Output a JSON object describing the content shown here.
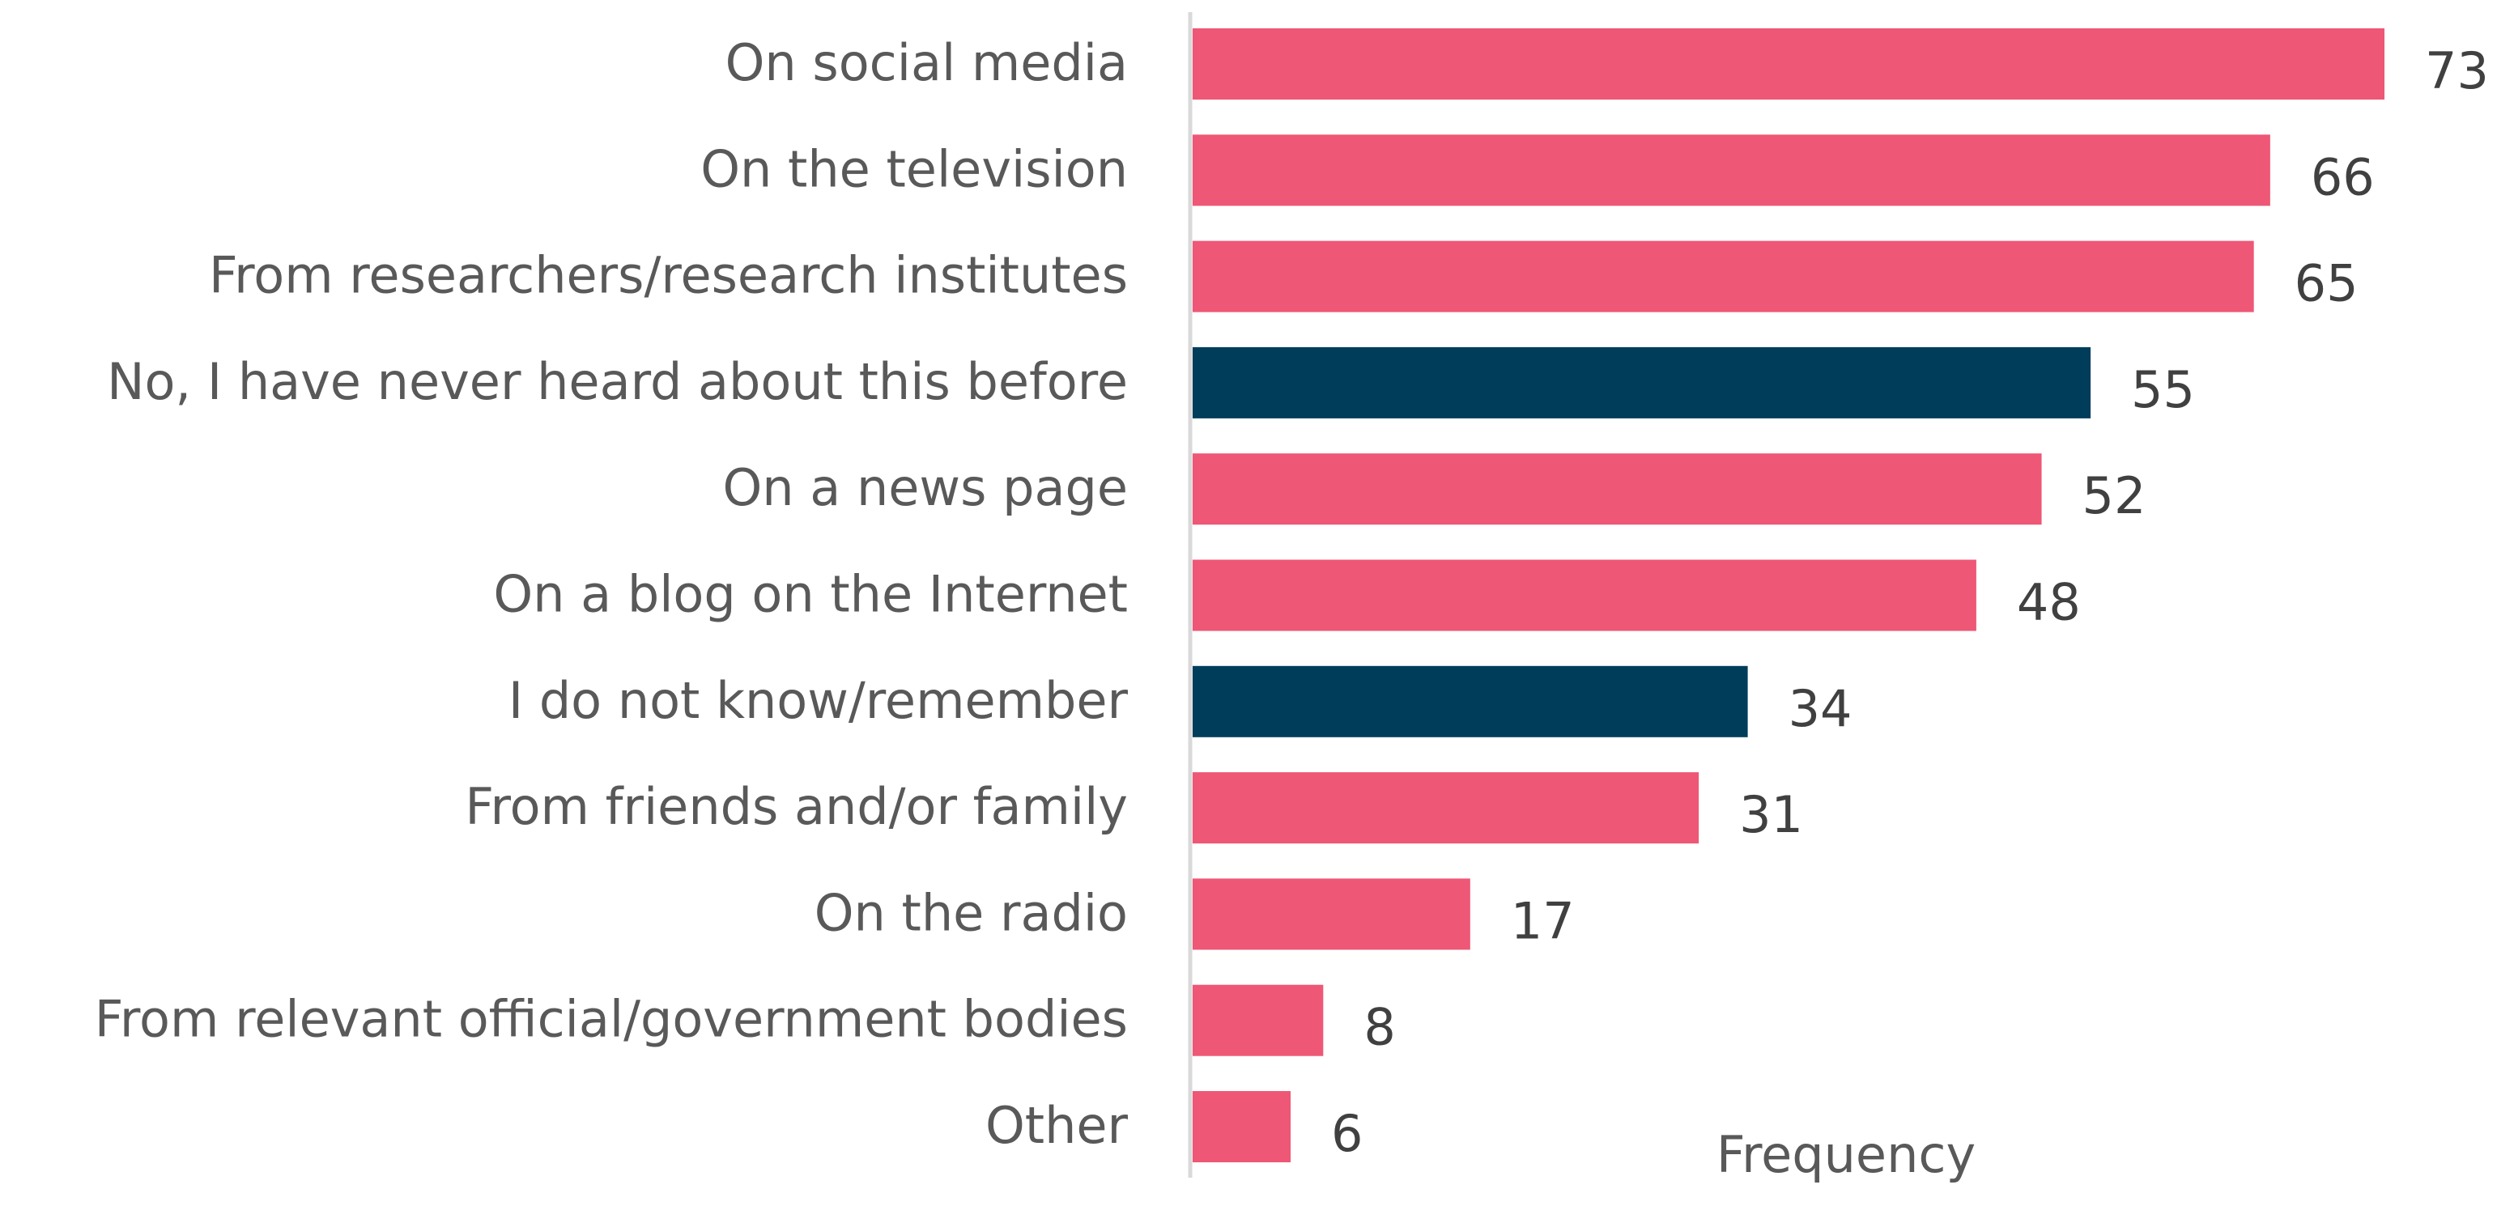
{
  "chart_data": {
    "type": "bar",
    "orientation": "horizontal",
    "categories": [
      "On social media",
      "On the television",
      "From researchers/research institutes",
      "No, I have never heard about this before",
      "On a news page",
      "On a blog on the Internet",
      "I do not know/remember",
      "From friends and/or family",
      "On the radio",
      "From relevant official/government bodies",
      "Other"
    ],
    "values": [
      73,
      66,
      65,
      55,
      52,
      48,
      34,
      31,
      17,
      8,
      6
    ],
    "highlight": [
      false,
      false,
      false,
      true,
      false,
      false,
      true,
      false,
      false,
      false,
      false
    ],
    "xlabel": "Frequency",
    "ylabel": "",
    "title": "",
    "xlim": [
      0,
      73
    ],
    "grid": false,
    "colors": {
      "default": "#EE5775",
      "highlight": "#003D5B",
      "axis": "#D9D9D9"
    }
  }
}
